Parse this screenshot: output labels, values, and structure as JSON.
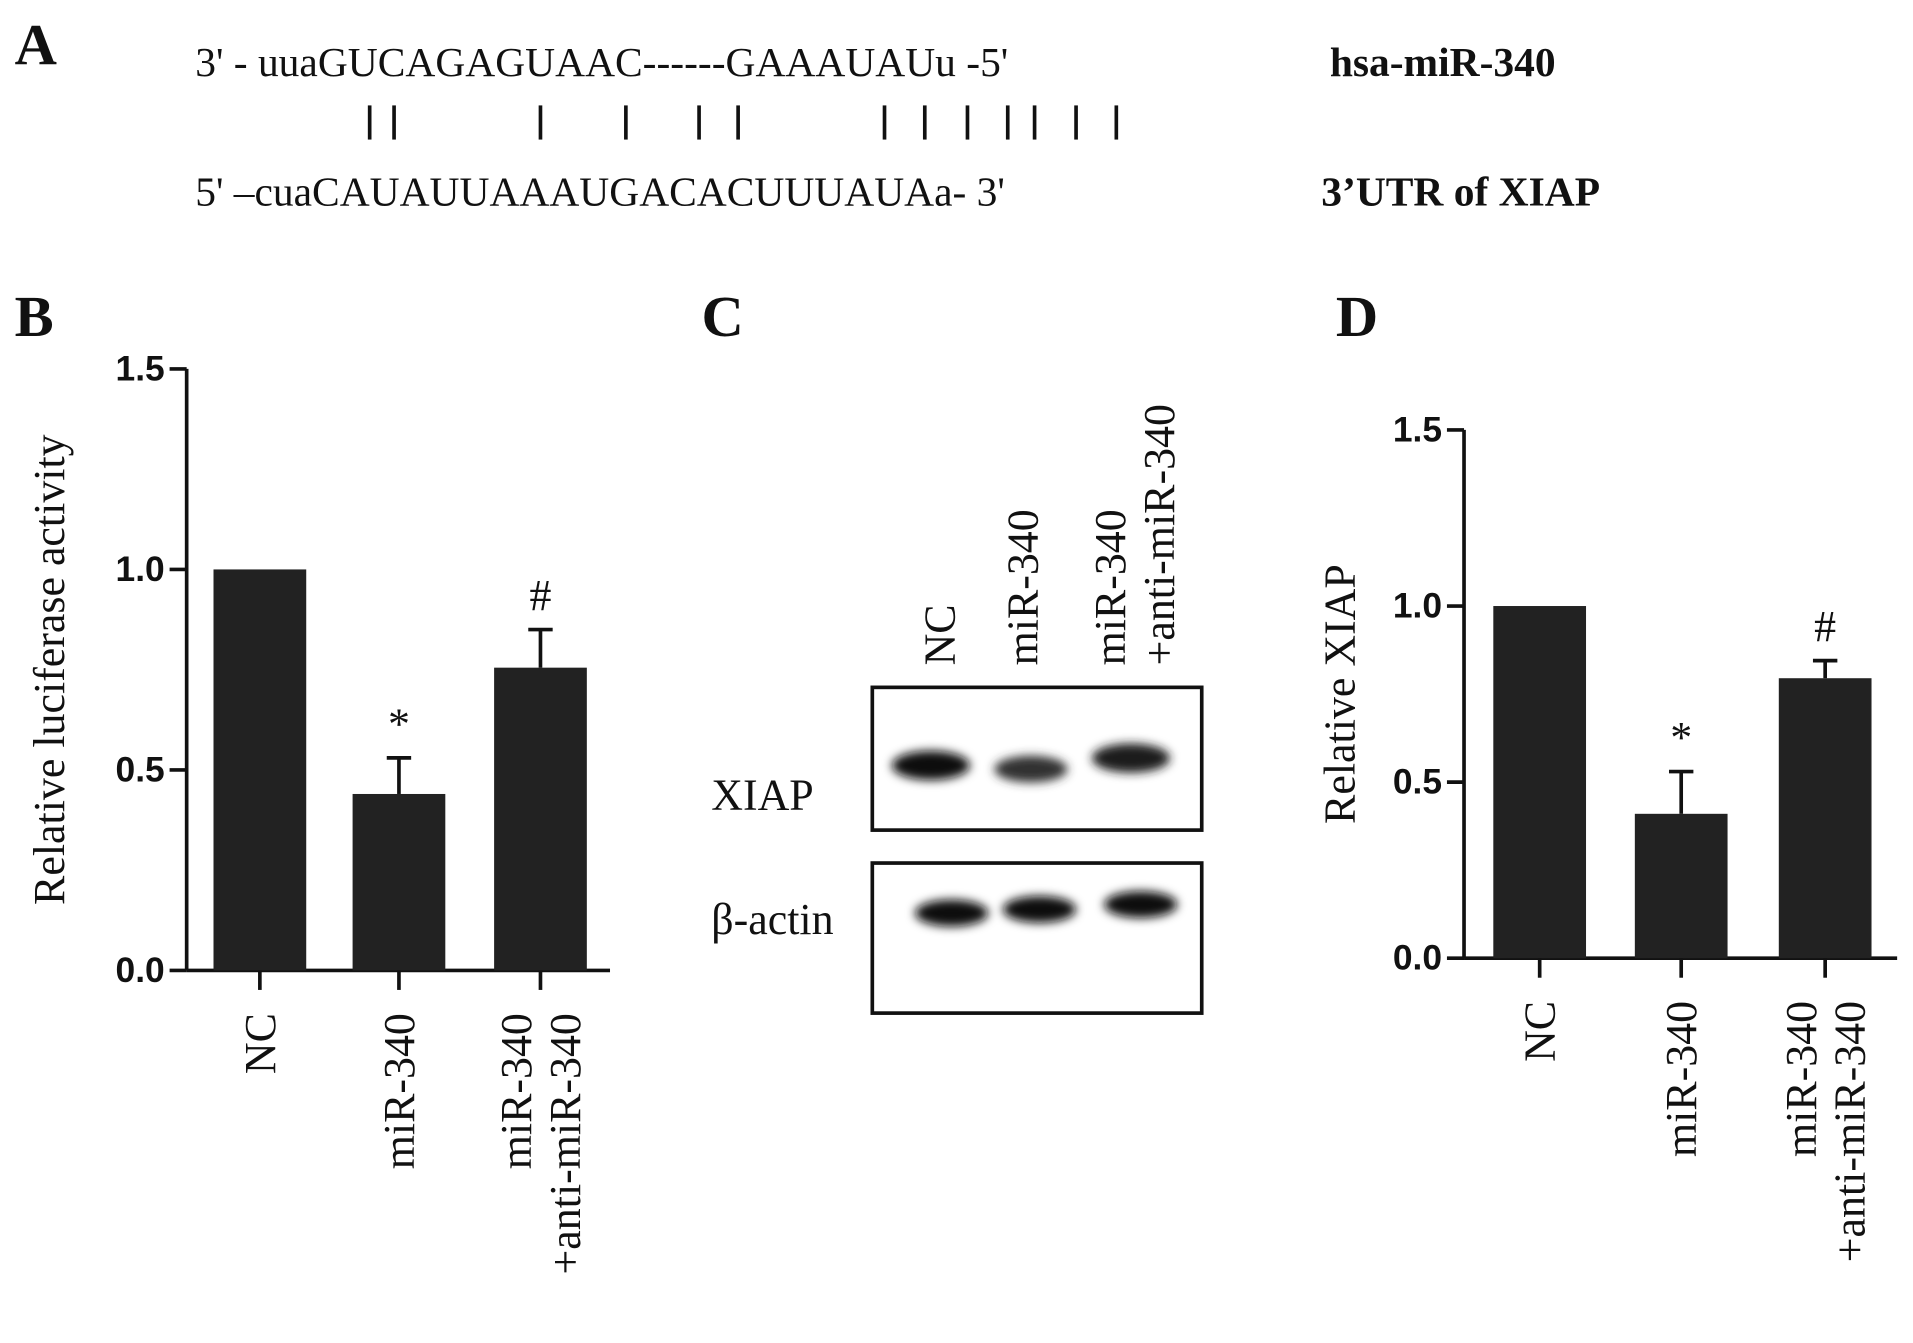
{
  "alignment": {
    "label": "A",
    "rows": [
      {
        "sequence": "3' - uuaGUCAGAGUAAC------GAAAUAUu -5'",
        "name": "hsa-miR-340"
      },
      {
        "sequence": "5' –cuaCAUAUUAAAUGACACUUUAUAa- 3'",
        "name": "3’UTR of  XIAP"
      }
    ]
  },
  "blot": {
    "label": "C",
    "lanes": [
      "NC",
      "miR-340",
      "miR-340\n+anti-miR-340"
    ],
    "rows": [
      "XIAP",
      "β-actin"
    ]
  },
  "chart_data": [
    {
      "type": "bar",
      "label": "B",
      "ylabel": "Relative luciferase activity",
      "categories": [
        "NC",
        "miR-340",
        "miR-340\n+anti-miR-340"
      ],
      "values": [
        1.0,
        0.44,
        0.755
      ],
      "errors": [
        0,
        0.09,
        0.095
      ],
      "annotations": [
        null,
        "*",
        "#"
      ],
      "color": "#222222",
      "ylim": [
        0,
        1.5
      ],
      "yticks": [
        {
          "value": 0,
          "label": "0.0"
        },
        {
          "value": 0.5,
          "label": "0.5"
        },
        {
          "value": 1,
          "label": "1.0"
        },
        {
          "value": 1.5,
          "label": "1.5"
        }
      ]
    },
    {
      "type": "bar",
      "label": "D",
      "ylabel": "Relative  XIAP",
      "categories": [
        "NC",
        "miR-340",
        "miR-340\n+anti-miR-340"
      ],
      "values": [
        1.0,
        0.41,
        0.795
      ],
      "errors": [
        0,
        0.12,
        0.05
      ],
      "annotations": [
        null,
        "*",
        "#"
      ],
      "color": "#222222",
      "ylim": [
        0,
        1.5
      ],
      "yticks": [
        {
          "value": 0,
          "label": "0.0"
        },
        {
          "value": 0.5,
          "label": "0.5"
        },
        {
          "value": 1,
          "label": "1.0"
        },
        {
          "value": 1.5,
          "label": "1.5"
        }
      ]
    }
  ]
}
